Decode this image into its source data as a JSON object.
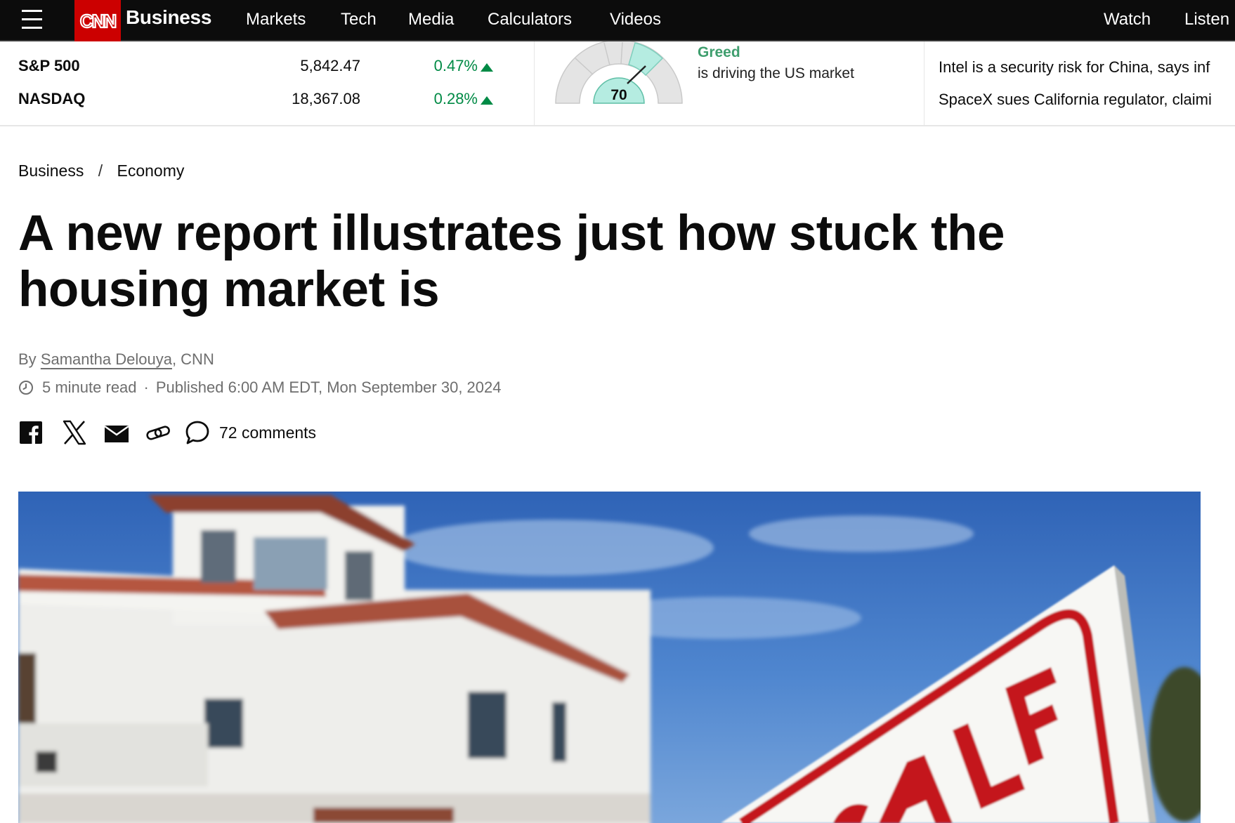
{
  "nav": {
    "brand": "Business",
    "logo_text": "CNN",
    "links": [
      "Markets",
      "Tech",
      "Media",
      "Calculators",
      "Videos"
    ],
    "right_links": [
      "Watch",
      "Listen"
    ]
  },
  "markets": {
    "indices": [
      {
        "name": "S&P 500",
        "value": "5,842.47",
        "change": "0.47%",
        "direction": "up"
      },
      {
        "name": "NASDAQ",
        "value": "18,367.08",
        "change": "0.28%",
        "direction": "up"
      }
    ],
    "fear_greed": {
      "score": "70",
      "label": "Greed",
      "description": "is driving the US market"
    },
    "headlines": [
      "Intel is a security risk for China, says inf",
      "SpaceX sues California regulator, claimi"
    ]
  },
  "article": {
    "breadcrumb": [
      "Business",
      "Economy"
    ],
    "breadcrumb_separator": "/",
    "title": "A new report illustrates just how stuck the housing market is",
    "byline_prefix": "By",
    "author": "Samantha Delouya",
    "outlet": ", CNN",
    "read_time": "5 minute read",
    "meta_separator": "·",
    "published": "Published 6:00 AM EDT, Mon September 30, 2024",
    "comments": "72 comments",
    "hero_sign_text": "SALE"
  },
  "colors": {
    "brand_red": "#cc0000",
    "nav_bg": "#0c0c0c",
    "positive": "#008a45",
    "greed": "#3f9e6e",
    "gauge_fill": "#b5ece1"
  },
  "icons": [
    "menu-icon",
    "clock-icon",
    "facebook-icon",
    "x-icon",
    "email-icon",
    "link-icon",
    "comment-icon"
  ]
}
